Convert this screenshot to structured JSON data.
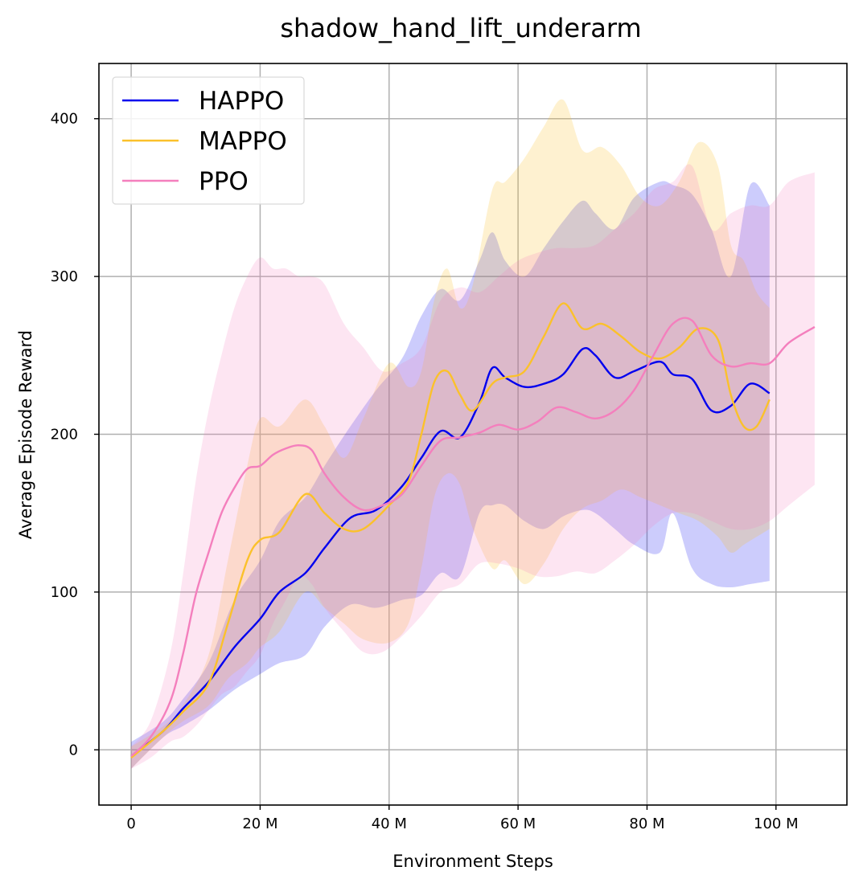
{
  "chart_data": {
    "type": "line",
    "title": "shadow_hand_lift_underarm",
    "xlabel": "Environment Steps",
    "ylabel": "Average Episode Reward",
    "xlim": [
      -5,
      111
    ],
    "ylim": [
      -35,
      435
    ],
    "x_ticks": [
      0,
      20,
      40,
      60,
      80,
      100
    ],
    "x_tick_labels": [
      "0",
      "20 M",
      "40 M",
      "60 M",
      "80 M",
      "100 M"
    ],
    "y_ticks": [
      0,
      100,
      200,
      300,
      400
    ],
    "y_tick_labels": [
      "0",
      "100",
      "200",
      "300",
      "400"
    ],
    "grid": true,
    "legend_position": "top-left",
    "series": [
      {
        "name": "HAPPO",
        "color": "#0000ee",
        "x": [
          0,
          5,
          8,
          12,
          16,
          20,
          23,
          27,
          30,
          34,
          38,
          42,
          45,
          48,
          51,
          54,
          56,
          58,
          61,
          64,
          67,
          70,
          72,
          75,
          78,
          82,
          84,
          87,
          90,
          93,
          96,
          99
        ],
        "y": [
          -4,
          12,
          26,
          43,
          65,
          83,
          100,
          112,
          128,
          147,
          152,
          167,
          185,
          202,
          198,
          220,
          242,
          236,
          230,
          232,
          238,
          254,
          250,
          236,
          240,
          246,
          238,
          235,
          215,
          218,
          232,
          226
        ],
        "upper": [
          5,
          18,
          32,
          55,
          95,
          120,
          145,
          160,
          180,
          205,
          228,
          248,
          275,
          292,
          285,
          310,
          328,
          310,
          300,
          318,
          335,
          348,
          340,
          330,
          350,
          360,
          358,
          352,
          330,
          300,
          358,
          345
        ],
        "lower": [
          -12,
          8,
          15,
          25,
          38,
          48,
          55,
          60,
          78,
          92,
          90,
          95,
          98,
          112,
          110,
          150,
          155,
          155,
          145,
          140,
          148,
          152,
          150,
          140,
          130,
          125,
          150,
          115,
          105,
          103,
          105,
          107
        ]
      },
      {
        "name": "MAPPO",
        "color": "#fbc12b",
        "x": [
          0,
          5,
          8,
          12,
          15,
          18,
          20,
          23,
          27,
          30,
          33,
          36,
          40,
          43,
          45,
          47,
          49,
          51,
          53,
          56,
          58,
          61,
          64,
          67,
          70,
          73,
          76,
          79,
          82,
          85,
          88,
          91,
          93,
          95,
          97,
          99
        ],
        "y": [
          -5,
          12,
          24,
          42,
          80,
          120,
          133,
          138,
          162,
          150,
          140,
          140,
          155,
          170,
          200,
          233,
          240,
          225,
          215,
          232,
          236,
          240,
          262,
          283,
          267,
          270,
          262,
          252,
          248,
          255,
          267,
          260,
          225,
          205,
          205,
          222
        ],
        "upper": [
          2,
          15,
          28,
          60,
          120,
          180,
          210,
          205,
          222,
          205,
          185,
          210,
          245,
          230,
          240,
          285,
          305,
          280,
          295,
          355,
          360,
          375,
          395,
          412,
          380,
          382,
          370,
          350,
          345,
          360,
          385,
          370,
          320,
          310,
          290,
          280
        ],
        "lower": [
          -12,
          8,
          18,
          28,
          45,
          55,
          65,
          75,
          100,
          90,
          80,
          70,
          68,
          80,
          115,
          160,
          175,
          168,
          140,
          115,
          120,
          105,
          118,
          140,
          153,
          158,
          165,
          160,
          155,
          150,
          145,
          135,
          125,
          130,
          135,
          140
        ]
      },
      {
        "name": "PPO",
        "color": "#f47fbd",
        "x": [
          0,
          3,
          6,
          8,
          10,
          12,
          14,
          16,
          18,
          20,
          22,
          24,
          26,
          28,
          30,
          33,
          36,
          39,
          42,
          45,
          48,
          51,
          54,
          57,
          60,
          63,
          66,
          69,
          72,
          75,
          78,
          81,
          84,
          87,
          90,
          93,
          96,
          99,
          102,
          106
        ],
        "y": [
          -4,
          8,
          30,
          60,
          98,
          125,
          150,
          166,
          178,
          180,
          187,
          191,
          193,
          190,
          175,
          160,
          152,
          155,
          162,
          180,
          196,
          198,
          201,
          206,
          203,
          208,
          217,
          214,
          210,
          215,
          228,
          250,
          270,
          272,
          250,
          243,
          245,
          245,
          258,
          268
        ],
        "upper": [
          2,
          18,
          60,
          110,
          170,
          215,
          250,
          280,
          300,
          312,
          305,
          305,
          300,
          300,
          295,
          270,
          255,
          240,
          245,
          255,
          285,
          293,
          290,
          300,
          310,
          315,
          318,
          318,
          320,
          330,
          340,
          355,
          360,
          370,
          330,
          340,
          345,
          345,
          360,
          366
        ],
        "lower": [
          -12,
          -5,
          5,
          8,
          15,
          25,
          35,
          40,
          50,
          60,
          80,
          95,
          110,
          105,
          90,
          75,
          62,
          62,
          72,
          85,
          100,
          105,
          118,
          118,
          115,
          110,
          110,
          113,
          112,
          120,
          130,
          142,
          150,
          150,
          145,
          140,
          140,
          145,
          155,
          168
        ]
      }
    ]
  }
}
